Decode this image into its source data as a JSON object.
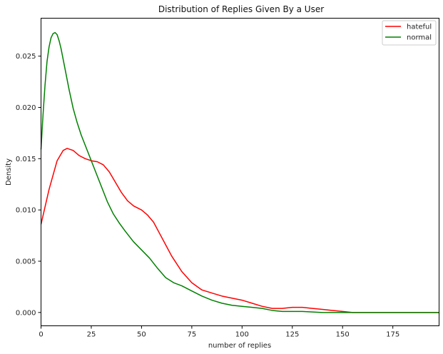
{
  "chart_data": {
    "type": "line",
    "title": "Distribution of Replies Given By a User",
    "xlabel": "number of replies",
    "ylabel": "Density",
    "xlim": [
      0,
      198
    ],
    "ylim": [
      -0.0013,
      0.0287
    ],
    "x_ticks": [
      0,
      25,
      50,
      75,
      100,
      125,
      150,
      175
    ],
    "y_ticks": [
      0.0,
      0.005,
      0.01,
      0.015,
      0.02,
      0.025
    ],
    "x_tick_labels": [
      "0",
      "25",
      "50",
      "75",
      "100",
      "125",
      "150",
      "175"
    ],
    "y_tick_labels": [
      "0.000",
      "0.005",
      "0.010",
      "0.015",
      "0.020",
      "0.025"
    ],
    "grid": false,
    "legend_position": "top-right",
    "series": [
      {
        "name": "hateful",
        "color": "#ff0000",
        "x": [
          0,
          4,
          8,
          11,
          13,
          16,
          19,
          22,
          25,
          28,
          31,
          34,
          37,
          40,
          43,
          46,
          50,
          53,
          56,
          59,
          62,
          65,
          70,
          75,
          80,
          85,
          90,
          95,
          100,
          105,
          110,
          115,
          120,
          125,
          130,
          135,
          140,
          145,
          150,
          155,
          160,
          170,
          180,
          190,
          198
        ],
        "y": [
          0.0086,
          0.012,
          0.0148,
          0.0158,
          0.016,
          0.0158,
          0.0153,
          0.015,
          0.0148,
          0.0147,
          0.0144,
          0.0137,
          0.0127,
          0.0117,
          0.0109,
          0.0104,
          0.01,
          0.0095,
          0.0088,
          0.0077,
          0.0066,
          0.0055,
          0.004,
          0.0029,
          0.0022,
          0.0019,
          0.0016,
          0.0014,
          0.0012,
          0.0009,
          0.0006,
          0.0004,
          0.0004,
          0.0005,
          0.0005,
          0.0004,
          0.0003,
          0.0002,
          0.0001,
          0.0,
          0.0,
          0.0,
          0.0,
          0.0,
          0.0
        ]
      },
      {
        "name": "normal",
        "color": "#008000",
        "x": [
          0,
          1,
          2,
          3,
          4,
          5,
          6,
          7,
          8,
          9,
          10,
          12,
          14,
          16,
          18,
          20,
          22,
          24,
          26,
          28,
          30,
          33,
          36,
          39,
          42,
          46,
          50,
          54,
          58,
          62,
          66,
          70,
          75,
          80,
          85,
          90,
          95,
          100,
          105,
          110,
          115,
          120,
          125,
          130,
          140,
          150,
          160,
          170,
          180,
          190,
          198
        ],
        "y": [
          0.0159,
          0.0193,
          0.0222,
          0.0245,
          0.0259,
          0.0268,
          0.0272,
          0.0273,
          0.0271,
          0.0265,
          0.0257,
          0.0237,
          0.0217,
          0.0199,
          0.0185,
          0.0173,
          0.0163,
          0.0153,
          0.0143,
          0.0133,
          0.0123,
          0.0108,
          0.0096,
          0.0087,
          0.0079,
          0.0069,
          0.0061,
          0.0053,
          0.0043,
          0.0034,
          0.0029,
          0.0026,
          0.0021,
          0.0016,
          0.0012,
          0.0009,
          0.0007,
          0.0006,
          0.0005,
          0.0004,
          0.0002,
          0.0001,
          0.0001,
          0.0001,
          0.0,
          0.0,
          0.0,
          0.0,
          0.0,
          0.0,
          0.0
        ]
      }
    ]
  }
}
